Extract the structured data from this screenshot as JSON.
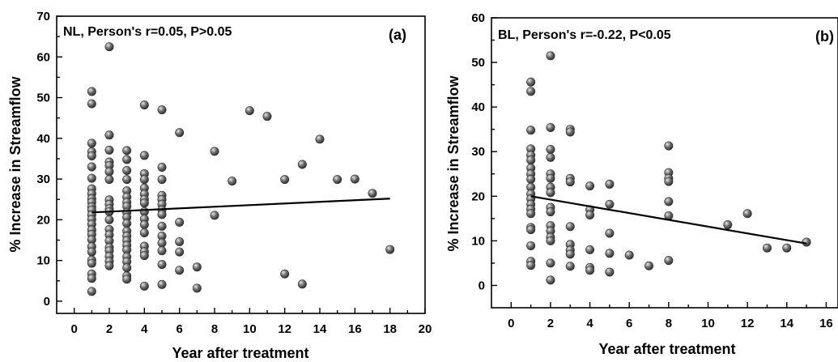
{
  "chart_data": [
    {
      "type": "scatter",
      "title": "NL, Person's r=0.05, P>0.05",
      "panel_label": "(a)",
      "xlabel": "Year after treatment",
      "ylabel": "% Increase in Streamflow",
      "xlim": [
        -1,
        20
      ],
      "ylim": [
        -3,
        70
      ],
      "xticks": [
        0,
        2,
        4,
        6,
        8,
        10,
        12,
        14,
        16,
        18,
        20
      ],
      "yticks": [
        0,
        10,
        20,
        30,
        40,
        50,
        60,
        70
      ],
      "grid": false,
      "marker_color": "#555555",
      "fit_line": {
        "x": [
          1,
          18
        ],
        "y": [
          21.8,
          25.2
        ]
      },
      "points": [
        [
          1,
          51.5
        ],
        [
          1,
          48.5
        ],
        [
          1,
          38.8
        ],
        [
          1,
          36.7
        ],
        [
          1,
          35.7
        ],
        [
          1,
          33.0
        ],
        [
          1,
          30.2
        ],
        [
          1,
          27.6
        ],
        [
          1,
          26.4
        ],
        [
          1,
          25.2
        ],
        [
          1,
          24.3
        ],
        [
          1,
          23.2
        ],
        [
          1,
          22.4
        ],
        [
          1,
          21.2
        ],
        [
          1,
          20.1
        ],
        [
          1,
          18.9
        ],
        [
          1,
          17.5
        ],
        [
          1,
          16.4
        ],
        [
          1,
          15.1
        ],
        [
          1,
          13.4
        ],
        [
          1,
          12.1
        ],
        [
          1,
          10.1
        ],
        [
          1,
          9.3
        ],
        [
          1,
          6.7
        ],
        [
          1,
          5.6
        ],
        [
          1,
          2.4
        ],
        [
          2,
          62.5
        ],
        [
          2,
          40.8
        ],
        [
          2,
          37.1
        ],
        [
          2,
          34.2
        ],
        [
          2,
          33.3
        ],
        [
          2,
          31.8
        ],
        [
          2,
          29.9
        ],
        [
          2,
          24.9
        ],
        [
          2,
          23.8
        ],
        [
          2,
          22.7
        ],
        [
          2,
          22.0
        ],
        [
          2,
          20.0
        ],
        [
          2,
          17.6
        ],
        [
          2,
          16.3
        ],
        [
          2,
          14.8
        ],
        [
          2,
          13.2
        ],
        [
          2,
          12.4
        ],
        [
          2,
          11.0
        ],
        [
          2,
          9.8
        ],
        [
          2,
          8.7
        ],
        [
          3,
          37.0
        ],
        [
          3,
          34.8
        ],
        [
          3,
          32.1
        ],
        [
          3,
          29.9
        ],
        [
          3,
          27.1
        ],
        [
          3,
          25.6
        ],
        [
          3,
          24.3
        ],
        [
          3,
          23.3
        ],
        [
          3,
          21.8
        ],
        [
          3,
          20.6
        ],
        [
          3,
          19.1
        ],
        [
          3,
          17.2
        ],
        [
          3,
          16.0
        ],
        [
          3,
          14.9
        ],
        [
          3,
          13.7
        ],
        [
          3,
          12.6
        ],
        [
          3,
          10.9
        ],
        [
          3,
          9.7
        ],
        [
          3,
          8.2
        ],
        [
          3,
          6.2
        ],
        [
          3,
          5.4
        ],
        [
          4,
          48.2
        ],
        [
          4,
          35.8
        ],
        [
          4,
          31.3
        ],
        [
          4,
          29.9
        ],
        [
          4,
          27.8
        ],
        [
          4,
          26.3
        ],
        [
          4,
          25.0
        ],
        [
          4,
          24.1
        ],
        [
          4,
          22.0
        ],
        [
          4,
          20.2
        ],
        [
          4,
          18.8
        ],
        [
          4,
          16.8
        ],
        [
          4,
          13.5
        ],
        [
          4,
          12.2
        ],
        [
          4,
          11.2
        ],
        [
          4,
          3.7
        ],
        [
          5,
          47.0
        ],
        [
          5,
          32.9
        ],
        [
          5,
          29.9
        ],
        [
          5,
          26.0
        ],
        [
          5,
          25.0
        ],
        [
          5,
          23.8
        ],
        [
          5,
          22.4
        ],
        [
          5,
          21.3
        ],
        [
          5,
          18.4
        ],
        [
          5,
          16.0
        ],
        [
          5,
          14.3
        ],
        [
          5,
          12.4
        ],
        [
          5,
          9.0
        ],
        [
          5,
          4.1
        ],
        [
          6,
          41.4
        ],
        [
          6,
          19.4
        ],
        [
          6,
          14.6
        ],
        [
          6,
          12.1
        ],
        [
          6,
          7.6
        ],
        [
          7,
          8.4
        ],
        [
          7,
          3.2
        ],
        [
          8,
          36.8
        ],
        [
          8,
          21.1
        ],
        [
          9,
          29.5
        ],
        [
          10,
          46.8
        ],
        [
          11,
          45.4
        ],
        [
          12,
          29.9
        ],
        [
          12,
          6.7
        ],
        [
          13,
          33.6
        ],
        [
          13,
          4.2
        ],
        [
          14,
          39.8
        ],
        [
          15,
          29.9
        ],
        [
          16,
          30.0
        ],
        [
          17,
          26.5
        ],
        [
          18,
          12.7
        ]
      ]
    },
    {
      "type": "scatter",
      "title": "BL, Person's r=-0.22, P<0.05",
      "panel_label": "(b)",
      "xlabel": "Year after treatment",
      "ylabel": "% Increase in Streamflow",
      "xlim": [
        -1,
        16.6
      ],
      "ylim": [
        -5,
        60
      ],
      "xticks": [
        0,
        2,
        4,
        6,
        8,
        10,
        12,
        14,
        16
      ],
      "yticks": [
        0,
        10,
        20,
        30,
        40,
        50,
        60
      ],
      "grid": false,
      "marker_color": "#555555",
      "fit_line": {
        "x": [
          1,
          15
        ],
        "y": [
          20.0,
          9.4
        ]
      },
      "points": [
        [
          1,
          45.6
        ],
        [
          1,
          43.5
        ],
        [
          1,
          34.8
        ],
        [
          1,
          30.6
        ],
        [
          1,
          29.2
        ],
        [
          1,
          28.1
        ],
        [
          1,
          26.3
        ],
        [
          1,
          25.0
        ],
        [
          1,
          23.8
        ],
        [
          1,
          22.0
        ],
        [
          1,
          20.5
        ],
        [
          1,
          19.4
        ],
        [
          1,
          18.2
        ],
        [
          1,
          17.1
        ],
        [
          1,
          16.1
        ],
        [
          1,
          13.0
        ],
        [
          1,
          12.5
        ],
        [
          1,
          8.9
        ],
        [
          1,
          5.4
        ],
        [
          1,
          4.5
        ],
        [
          2,
          51.5
        ],
        [
          2,
          35.4
        ],
        [
          2,
          30.5
        ],
        [
          2,
          28.7
        ],
        [
          2,
          25.0
        ],
        [
          2,
          24.0
        ],
        [
          2,
          22.0
        ],
        [
          2,
          20.8
        ],
        [
          2,
          17.5
        ],
        [
          2,
          16.5
        ],
        [
          2,
          13.4
        ],
        [
          2,
          12.2
        ],
        [
          2,
          10.8
        ],
        [
          2,
          10.0
        ],
        [
          2,
          5.0
        ],
        [
          2,
          1.2
        ],
        [
          3,
          35.0
        ],
        [
          3,
          34.4
        ],
        [
          3,
          24.0
        ],
        [
          3,
          23.2
        ],
        [
          3,
          13.2
        ],
        [
          3,
          9.2
        ],
        [
          3,
          7.9
        ],
        [
          3,
          7.0
        ],
        [
          3,
          4.3
        ],
        [
          4,
          22.3
        ],
        [
          4,
          17.0
        ],
        [
          4,
          15.8
        ],
        [
          4,
          8.0
        ],
        [
          4,
          4.0
        ],
        [
          4,
          3.4
        ],
        [
          5,
          22.7
        ],
        [
          5,
          18.2
        ],
        [
          5,
          11.7
        ],
        [
          5,
          7.2
        ],
        [
          5,
          3.0
        ],
        [
          6,
          6.8
        ],
        [
          7,
          4.4
        ],
        [
          8,
          31.3
        ],
        [
          8,
          25.3
        ],
        [
          8,
          24.0
        ],
        [
          8,
          23.3
        ],
        [
          8,
          18.8
        ],
        [
          8,
          15.6
        ],
        [
          8,
          5.6
        ],
        [
          11,
          13.6
        ],
        [
          12,
          16.1
        ],
        [
          13,
          8.4
        ],
        [
          14,
          8.4
        ],
        [
          15,
          9.7
        ]
      ]
    }
  ]
}
